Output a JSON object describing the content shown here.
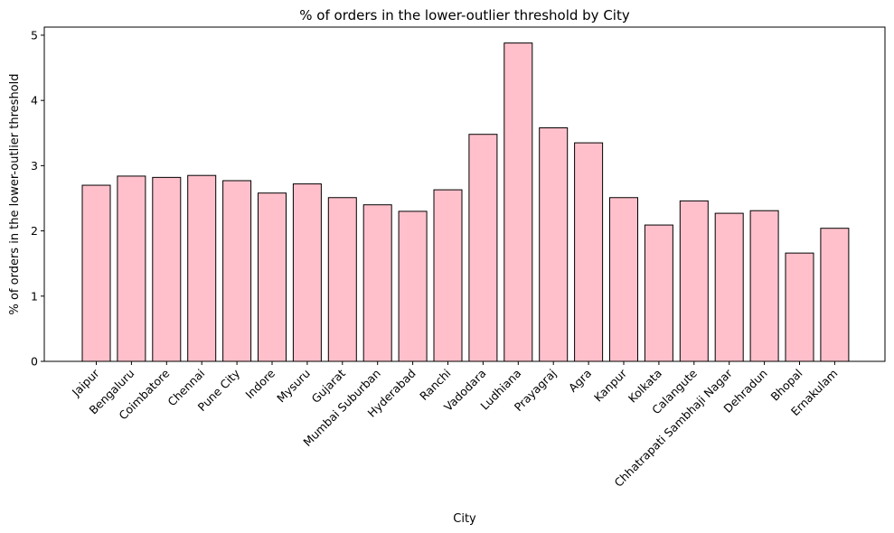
{
  "chart_data": {
    "type": "bar",
    "title": "% of orders in the lower-outlier threshold by City",
    "xlabel": "City",
    "ylabel": "% of orders in the lower-outlier threshold",
    "categories": [
      "Jaipur",
      "Bengaluru",
      "Coimbatore",
      "Chennai",
      "Pune City",
      "Indore",
      "Mysuru",
      "Gujarat",
      "Mumbai Suburban",
      "Hyderabad",
      "Ranchi",
      "Vadodara",
      "Ludhiana",
      "Prayagraj",
      "Agra",
      "Kanpur",
      "Kolkata",
      "Calangute",
      "Chhatrapati Sambhaji Nagar",
      "Dehradun",
      "Bhopal",
      "Ernakulam"
    ],
    "values": [
      2.7,
      2.84,
      2.82,
      2.85,
      2.77,
      2.58,
      2.72,
      2.51,
      2.4,
      2.3,
      2.63,
      3.48,
      4.88,
      3.58,
      3.35,
      2.51,
      2.09,
      2.46,
      2.27,
      2.31,
      1.66,
      2.04
    ],
    "yticks": [
      0,
      1,
      2,
      3,
      4,
      5
    ],
    "ylim": [
      0,
      5.124
    ],
    "grid": false,
    "legend": "none",
    "colors": {
      "bar_fill": "#ffc0cb",
      "bar_edge": "#000000"
    }
  }
}
